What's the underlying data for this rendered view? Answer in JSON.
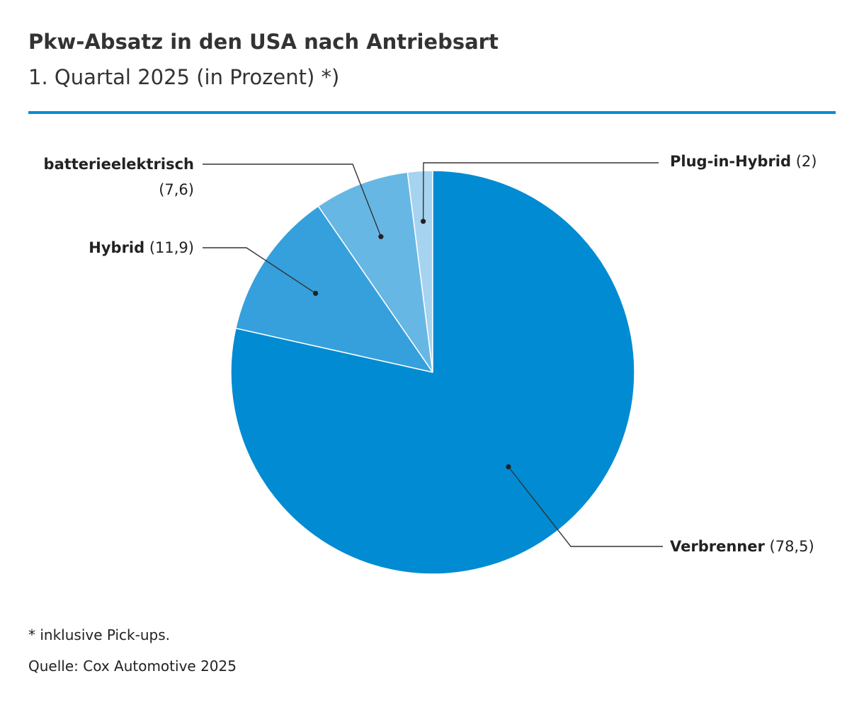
{
  "chart_data": {
    "type": "pie",
    "title": "Pkw-Absatz in den USA nach Antriebsart",
    "subtitle": "1. Quartal 2025 (in Prozent) *)",
    "start_angle_deg": 0,
    "direction": "counterclockwise",
    "slices": [
      {
        "name": "Plug-in-Hybrid",
        "value": 2,
        "value_label": "(2)",
        "color": "#a6d3ef"
      },
      {
        "name": "batterieelektrisch",
        "value": 7.6,
        "value_label": "(7,6)",
        "color": "#67b7e5"
      },
      {
        "name": "Hybrid",
        "value": 11.9,
        "value_label": "(11,9)",
        "color": "#35a0dc"
      },
      {
        "name": "Verbrenner",
        "value": 78.5,
        "value_label": "(78,5)",
        "color": "#008bd2"
      }
    ],
    "legend": "none",
    "grid": false
  },
  "accent_color": "#0a8ad6",
  "footnote": "* inklusive Pick-ups.",
  "source": "Quelle: Cox Automotive 2025"
}
